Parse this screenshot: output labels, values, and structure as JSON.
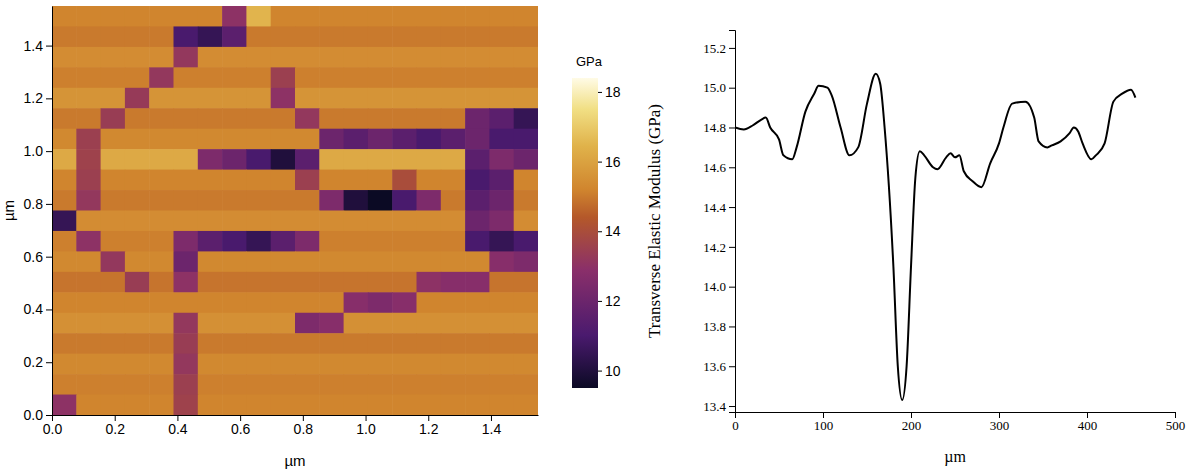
{
  "chart_data": [
    {
      "type": "heatmap",
      "xlabel": "µm",
      "ylabel": "µm",
      "xlim": [
        0,
        1.55
      ],
      "ylim": [
        0,
        1.55
      ],
      "xticks": [
        {
          "value": 0,
          "label": "0.0"
        },
        0.2,
        0.4,
        0.6,
        0.8,
        {
          "value": 1,
          "label": "1.0"
        },
        1.2,
        1.4
      ],
      "yticks": [
        {
          "value": 0,
          "label": "0.0"
        },
        0.2,
        0.4,
        0.6,
        0.8,
        {
          "value": 1,
          "label": "1.0"
        },
        1.2,
        1.4
      ],
      "colorbar_label": "GPa",
      "zlim": [
        9.5,
        18.4
      ],
      "zticks": [
        10,
        12,
        14,
        16,
        18
      ],
      "z": [
        [
          15.2,
          15.2,
          15.2,
          15.2,
          15.2,
          15.2,
          15.2,
          13.0,
          16.5,
          15.2,
          15.2,
          15.2,
          15.2,
          15.2,
          15.2,
          15.2,
          15.2,
          15.2,
          15.2,
          15.2
        ],
        [
          15.0,
          15.0,
          15.0,
          15.0,
          15.0,
          11.0,
          10.5,
          11.5,
          15.0,
          15.0,
          15.0,
          15.0,
          15.0,
          15.0,
          15.0,
          15.0,
          15.0,
          15.0,
          15.0,
          15.0
        ],
        [
          15.4,
          15.4,
          15.4,
          15.4,
          15.4,
          13.2,
          15.4,
          15.4,
          15.4,
          15.4,
          15.4,
          15.4,
          15.4,
          15.4,
          15.4,
          15.4,
          15.4,
          15.4,
          15.4,
          15.4
        ],
        [
          15.1,
          15.1,
          15.1,
          15.1,
          13.2,
          15.1,
          15.1,
          15.1,
          15.1,
          13.5,
          15.1,
          15.1,
          15.1,
          15.1,
          15.1,
          15.1,
          15.1,
          15.1,
          15.1,
          15.1
        ],
        [
          15.6,
          15.6,
          15.6,
          13.3,
          15.6,
          15.6,
          15.6,
          15.6,
          15.6,
          13.0,
          15.6,
          15.6,
          15.6,
          15.6,
          15.6,
          15.6,
          15.6,
          15.6,
          15.6,
          15.6
        ],
        [
          15.0,
          15.0,
          13.4,
          15.0,
          15.0,
          15.0,
          15.0,
          15.0,
          15.0,
          15.0,
          13.2,
          15.0,
          15.0,
          15.0,
          15.0,
          15.0,
          15.0,
          12.0,
          11.5,
          10.5
        ],
        [
          15.3,
          13.5,
          15.3,
          15.3,
          15.3,
          15.3,
          15.3,
          15.3,
          15.3,
          15.3,
          15.3,
          12.0,
          11.5,
          12.0,
          11.5,
          11.0,
          11.5,
          12.0,
          11.0,
          11.0
        ],
        [
          16.2,
          13.6,
          16.2,
          16.2,
          16.2,
          16.2,
          12.5,
          12.0,
          11.0,
          10.0,
          11.5,
          16.2,
          16.2,
          16.2,
          16.2,
          16.2,
          16.2,
          11.5,
          12.5,
          12.0
        ],
        [
          15.2,
          13.5,
          15.2,
          15.2,
          15.2,
          15.2,
          15.2,
          15.2,
          15.2,
          15.2,
          13.5,
          15.2,
          15.2,
          15.2,
          14.0,
          15.2,
          15.2,
          11.0,
          11.5,
          15.2
        ],
        [
          15.0,
          13.2,
          15.0,
          15.0,
          15.0,
          15.0,
          15.0,
          15.0,
          15.0,
          15.0,
          15.0,
          12.5,
          10.0,
          9.5,
          11.0,
          12.5,
          15.0,
          11.5,
          12.0,
          15.0
        ],
        [
          10.5,
          15.4,
          15.4,
          15.4,
          15.4,
          15.4,
          15.4,
          15.4,
          15.4,
          15.4,
          15.4,
          15.4,
          15.4,
          15.4,
          15.4,
          15.4,
          15.4,
          12.0,
          12.5,
          15.4
        ],
        [
          15.1,
          13.0,
          15.1,
          15.1,
          15.1,
          12.5,
          11.5,
          11.0,
          10.5,
          11.5,
          12.5,
          15.1,
          15.1,
          15.1,
          15.1,
          15.1,
          15.1,
          11.0,
          10.5,
          11.0
        ],
        [
          15.3,
          15.3,
          13.2,
          15.3,
          15.3,
          12.0,
          15.3,
          15.3,
          15.3,
          15.3,
          15.3,
          15.3,
          15.3,
          15.3,
          15.3,
          15.3,
          15.3,
          15.3,
          12.8,
          12.5
        ],
        [
          14.9,
          14.9,
          14.9,
          13.4,
          14.9,
          13.0,
          14.9,
          14.9,
          14.9,
          14.9,
          14.9,
          14.9,
          14.9,
          14.9,
          14.9,
          13.0,
          12.8,
          12.8,
          14.9,
          14.9
        ],
        [
          15.2,
          15.2,
          15.2,
          15.2,
          15.2,
          15.2,
          15.2,
          15.2,
          15.2,
          15.2,
          15.2,
          15.2,
          12.8,
          12.5,
          12.8,
          15.2,
          15.2,
          15.2,
          15.2,
          15.2
        ],
        [
          15.5,
          15.5,
          15.5,
          15.5,
          15.5,
          13.2,
          15.5,
          15.5,
          15.5,
          15.5,
          12.5,
          12.8,
          15.5,
          15.5,
          15.5,
          15.5,
          15.5,
          15.5,
          15.5,
          15.5
        ],
        [
          15.0,
          15.0,
          15.0,
          15.0,
          15.0,
          13.4,
          15.0,
          15.0,
          15.0,
          15.0,
          15.0,
          15.0,
          15.0,
          15.0,
          15.0,
          15.0,
          15.0,
          15.0,
          15.0,
          15.0
        ],
        [
          15.3,
          15.3,
          15.3,
          15.3,
          15.3,
          13.2,
          15.3,
          15.3,
          15.3,
          15.3,
          15.3,
          15.3,
          15.3,
          15.3,
          15.3,
          15.3,
          15.3,
          15.3,
          15.3,
          15.3
        ],
        [
          15.1,
          15.1,
          15.1,
          15.1,
          15.1,
          13.5,
          15.1,
          15.1,
          15.1,
          15.1,
          15.1,
          15.1,
          15.1,
          15.1,
          15.1,
          15.1,
          15.1,
          15.1,
          15.1,
          15.1
        ],
        [
          13.0,
          15.2,
          15.2,
          15.2,
          15.2,
          13.6,
          15.2,
          15.2,
          15.2,
          15.2,
          15.2,
          15.2,
          15.2,
          15.2,
          15.2,
          15.2,
          15.2,
          15.2,
          15.2,
          15.2
        ]
      ]
    },
    {
      "type": "line",
      "xlabel": "µm",
      "ylabel": "Transverse Elastic Modulus (GPa)",
      "color": "#000000",
      "xlim": [
        0,
        500
      ],
      "ylim": [
        13.37,
        15.29
      ],
      "xticks": [
        0,
        100,
        200,
        300,
        400,
        500
      ],
      "yticks": [
        13.4,
        13.6,
        13.8,
        {
          "value": 14,
          "label": "14.0"
        },
        14.2,
        14.4,
        14.6,
        14.8,
        {
          "value": 15,
          "label": "15.0"
        },
        15.2
      ],
      "x": [
        0,
        10,
        20,
        30,
        35,
        40,
        50,
        55,
        65,
        70,
        80,
        90,
        95,
        105,
        110,
        120,
        130,
        140,
        150,
        160,
        165,
        170,
        180,
        185,
        190,
        195,
        200,
        205,
        210,
        215,
        225,
        230,
        240,
        245,
        250,
        255,
        260,
        270,
        280,
        290,
        300,
        305,
        315,
        330,
        340,
        345,
        355,
        360,
        370,
        380,
        385,
        390,
        395,
        405,
        410,
        420,
        430,
        440,
        450,
        455
      ],
      "values": [
        14.8,
        14.79,
        14.81,
        14.84,
        14.85,
        14.8,
        14.74,
        14.66,
        14.64,
        14.7,
        14.88,
        14.97,
        15.01,
        15.0,
        14.96,
        14.8,
        14.66,
        14.7,
        14.92,
        15.07,
        15.02,
        14.8,
        14.1,
        13.6,
        13.43,
        13.6,
        14.1,
        14.55,
        14.68,
        14.66,
        14.6,
        14.59,
        14.65,
        14.67,
        14.65,
        14.66,
        14.58,
        14.53,
        14.5,
        14.62,
        14.72,
        14.8,
        14.92,
        14.93,
        14.85,
        14.73,
        14.7,
        14.71,
        14.73,
        14.77,
        14.8,
        14.78,
        14.72,
        14.64,
        14.66,
        14.72,
        14.93,
        14.97,
        14.99,
        14.95
      ]
    }
  ]
}
